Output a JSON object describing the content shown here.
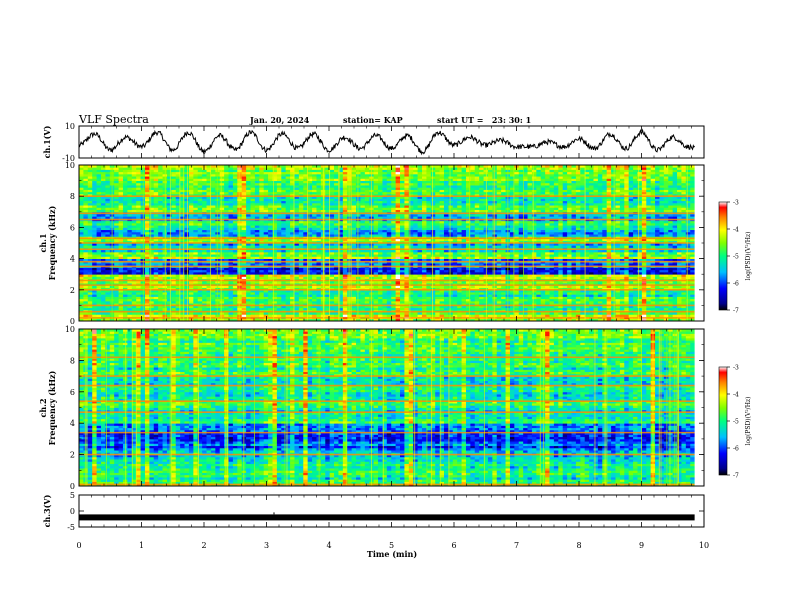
{
  "header": {
    "title": "VLF Spectra",
    "date": "Jan. 20, 2024",
    "station": "station= KAP",
    "start_ut": "start UT =   23: 30: 1"
  },
  "chart_data": [
    {
      "type": "line",
      "name": "ch1-waveform",
      "ylabel": "ch.1(V)",
      "ylim": [
        -10,
        10
      ],
      "yticks": [
        "10",
        "-10"
      ],
      "xlim": [
        0,
        10
      ],
      "x": [
        0,
        0.25,
        0.5,
        0.75,
        1,
        1.25,
        1.5,
        1.75,
        2,
        2.25,
        2.5,
        2.75,
        3,
        3.25,
        3.5,
        3.75,
        4,
        4.25,
        4.5,
        4.75,
        5,
        5.25,
        5.5,
        5.75,
        6,
        6.25,
        6.5,
        6.75,
        7,
        7.25,
        7.5,
        7.75,
        8,
        8.25,
        8.5,
        8.75,
        9,
        9.25,
        9.5,
        9.75,
        9.85
      ],
      "y": [
        -2,
        5,
        -5,
        3,
        -3,
        6,
        -5,
        6,
        -6,
        4,
        -5,
        6,
        -5,
        5,
        -4,
        5,
        -5,
        3,
        -4,
        4,
        -4,
        4,
        -6,
        6,
        -2,
        3,
        -2,
        1,
        -3,
        -3,
        0,
        -3,
        2,
        -4,
        5,
        -4,
        6,
        -5,
        3,
        -3,
        -4
      ]
    },
    {
      "type": "heatmap",
      "name": "ch1-spectrogram",
      "ylabel": "ch.1\nFrequency (kHz)",
      "ylim": [
        0,
        10
      ],
      "yticks": [
        "0",
        "2",
        "4",
        "6",
        "8",
        "10"
      ],
      "xlim": [
        0,
        10
      ],
      "time_extent_min": 9.85,
      "colorbar": {
        "label": "log(PSD)(V²/Hz)",
        "range": [
          -7,
          -3
        ],
        "ticks": [
          "-3",
          "-4",
          "-5",
          "-6",
          "-7"
        ]
      },
      "freq_bands_khz": [
        0,
        0.5,
        1,
        1.5,
        2,
        2.5,
        3,
        3.5,
        4,
        4.5,
        5,
        5.5,
        6,
        6.5,
        7,
        7.5,
        8,
        8.5,
        9,
        9.5
      ],
      "band_mean_log_psd": [
        -4.3,
        -5.0,
        -4.8,
        -5.0,
        -4.6,
        -4.4,
        -6.1,
        -5.9,
        -4.5,
        -5.4,
        -4.6,
        -5.5,
        -5.0,
        -5.6,
        -4.7,
        -5.2,
        -4.8,
        -5.0,
        -4.6,
        -4.5
      ],
      "persistent_lines_khz": [
        0.2,
        0.6,
        1.0,
        2.0,
        2.3,
        2.6,
        3.5,
        3.8,
        4.6,
        5.0,
        5.3,
        6.5,
        6.9,
        8.0
      ]
    },
    {
      "type": "heatmap",
      "name": "ch2-spectrogram",
      "ylabel": "ch.2\nFrequency (kHz)",
      "ylim": [
        0,
        10
      ],
      "yticks": [
        "0",
        "2",
        "4",
        "6",
        "8",
        "10"
      ],
      "xlim": [
        0,
        10
      ],
      "time_extent_min": 9.85,
      "colorbar": {
        "label": "log(PSD)(V²/Hz)",
        "range": [
          -7,
          -3
        ],
        "ticks": [
          "-3",
          "-4",
          "-5",
          "-6",
          "-7"
        ]
      },
      "freq_bands_khz": [
        0,
        0.5,
        1,
        1.5,
        2,
        2.5,
        3,
        3.5,
        4,
        4.5,
        5,
        5.5,
        6,
        6.5,
        7,
        7.5,
        8,
        8.5,
        9,
        9.5
      ],
      "band_mean_log_psd": [
        -4.8,
        -5.1,
        -5.2,
        -5.4,
        -5.6,
        -6.0,
        -6.2,
        -6.0,
        -5.0,
        -5.3,
        -5.0,
        -5.2,
        -5.0,
        -5.3,
        -5.0,
        -5.0,
        -4.8,
        -5.0,
        -4.9,
        -4.8
      ],
      "persistent_lines_khz": [
        0.1,
        2.0,
        3.4,
        4.7,
        5.4,
        6.4,
        7.0,
        8.2
      ]
    },
    {
      "type": "line",
      "name": "ch3-waveform",
      "ylabel": "ch.3(V)",
      "ylim": [
        -5,
        5
      ],
      "yticks": [
        "5",
        "0",
        "-5"
      ],
      "xlim": [
        0,
        10
      ],
      "xticks": [
        "0",
        "1",
        "2",
        "3",
        "4",
        "5",
        "6",
        "7",
        "8",
        "9",
        "10"
      ],
      "xlabel": "Time (min)",
      "x": [
        0,
        9.85
      ],
      "y": [
        -2,
        -2
      ]
    }
  ]
}
